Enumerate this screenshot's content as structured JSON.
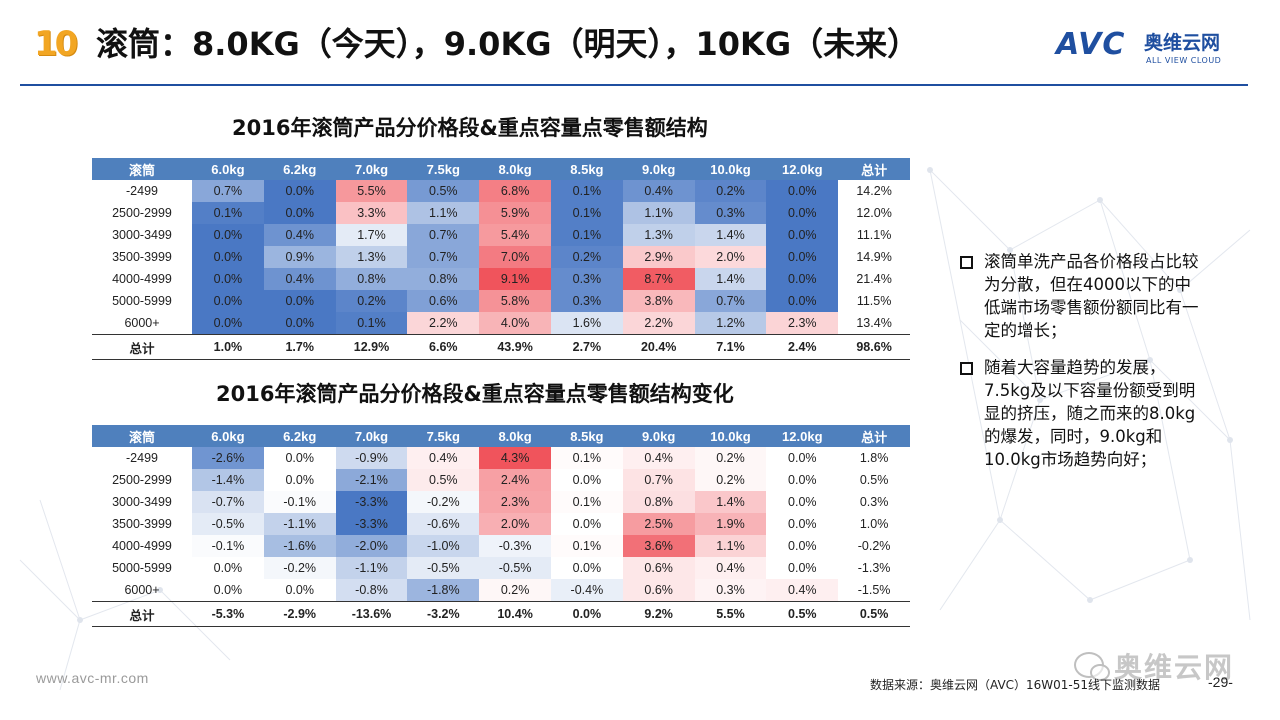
{
  "header": {
    "badge": "10",
    "title": "滚筒：8.0KG（今天），9.0KG（明天），10KG（未来）",
    "logo_text": "AVC",
    "logo_cn": "奥维云网",
    "logo_en": "ALL VIEW CLOUD"
  },
  "colors": {
    "header_bg": "#4f80bd",
    "positive_high": "#f0545c",
    "negative_high": "#4a78c4",
    "title_accent": "#f2a623",
    "brand": "#1f4fa0"
  },
  "table1": {
    "title": "2016年滚筒产品分价格段&重点容量点零售额结构",
    "columns": [
      "滚筒",
      "6.0kg",
      "6.2kg",
      "7.0kg",
      "7.5kg",
      "8.0kg",
      "8.5kg",
      "9.0kg",
      "10.0kg",
      "12.0kg",
      "总计"
    ],
    "rows": [
      [
        "-2499",
        "0.7%",
        "0.0%",
        "5.5%",
        "0.5%",
        "6.8%",
        "0.1%",
        "0.4%",
        "0.2%",
        "0.0%",
        "14.2%"
      ],
      [
        "2500-2999",
        "0.1%",
        "0.0%",
        "3.3%",
        "1.1%",
        "5.9%",
        "0.1%",
        "1.1%",
        "0.3%",
        "0.0%",
        "12.0%"
      ],
      [
        "3000-3499",
        "0.0%",
        "0.4%",
        "1.7%",
        "0.7%",
        "5.4%",
        "0.1%",
        "1.3%",
        "1.4%",
        "0.0%",
        "11.1%"
      ],
      [
        "3500-3999",
        "0.0%",
        "0.9%",
        "1.3%",
        "0.7%",
        "7.0%",
        "0.2%",
        "2.9%",
        "2.0%",
        "0.0%",
        "14.9%"
      ],
      [
        "4000-4999",
        "0.0%",
        "0.4%",
        "0.8%",
        "0.8%",
        "9.1%",
        "0.3%",
        "8.7%",
        "1.4%",
        "0.0%",
        "21.4%"
      ],
      [
        "5000-5999",
        "0.0%",
        "0.0%",
        "0.2%",
        "0.6%",
        "5.8%",
        "0.3%",
        "3.8%",
        "0.7%",
        "0.0%",
        "11.5%"
      ],
      [
        "6000+",
        "0.0%",
        "0.0%",
        "0.1%",
        "2.2%",
        "4.0%",
        "1.6%",
        "2.2%",
        "1.2%",
        "2.3%",
        "13.4%"
      ]
    ],
    "total": [
      "总计",
      "1.0%",
      "1.7%",
      "12.9%",
      "6.6%",
      "43.9%",
      "2.7%",
      "20.4%",
      "7.1%",
      "2.4%",
      "98.6%"
    ]
  },
  "table2": {
    "title": "2016年滚筒产品分价格段&重点容量点零售额结构变化",
    "columns": [
      "滚筒",
      "6.0kg",
      "6.2kg",
      "7.0kg",
      "7.5kg",
      "8.0kg",
      "8.5kg",
      "9.0kg",
      "10.0kg",
      "12.0kg",
      "总计"
    ],
    "rows": [
      [
        "-2499",
        "-2.6%",
        "0.0%",
        "-0.9%",
        "0.4%",
        "4.3%",
        "0.1%",
        "0.4%",
        "0.2%",
        "0.0%",
        "1.8%"
      ],
      [
        "2500-2999",
        "-1.4%",
        "0.0%",
        "-2.1%",
        "0.5%",
        "2.4%",
        "0.0%",
        "0.7%",
        "0.2%",
        "0.0%",
        "0.5%"
      ],
      [
        "3000-3499",
        "-0.7%",
        "-0.1%",
        "-3.3%",
        "-0.2%",
        "2.3%",
        "0.1%",
        "0.8%",
        "1.4%",
        "0.0%",
        "0.3%"
      ],
      [
        "3500-3999",
        "-0.5%",
        "-1.1%",
        "-3.3%",
        "-0.6%",
        "2.0%",
        "0.0%",
        "2.5%",
        "1.9%",
        "0.0%",
        "1.0%"
      ],
      [
        "4000-4999",
        "-0.1%",
        "-1.6%",
        "-2.0%",
        "-1.0%",
        "-0.3%",
        "0.1%",
        "3.6%",
        "1.1%",
        "0.0%",
        "-0.2%"
      ],
      [
        "5000-5999",
        "0.0%",
        "-0.2%",
        "-1.1%",
        "-0.5%",
        "-0.5%",
        "0.0%",
        "0.6%",
        "0.4%",
        "0.0%",
        "-1.3%"
      ],
      [
        "6000+",
        "0.0%",
        "0.0%",
        "-0.8%",
        "-1.8%",
        "0.2%",
        "-0.4%",
        "0.6%",
        "0.3%",
        "0.4%",
        "-1.5%"
      ]
    ],
    "total": [
      "总计",
      "-5.3%",
      "-2.9%",
      "-13.6%",
      "-3.2%",
      "10.4%",
      "0.0%",
      "9.2%",
      "5.5%",
      "0.5%",
      "0.5%"
    ]
  },
  "bullets": [
    "滚筒单洗产品各价格段占比较为分散，但在4000以下的中低端市场零售额份额同比有一定的增长；",
    "随着大容量趋势的发展，7.5kg及以下容量份额受到明显的挤压，随之而来的8.0kg的爆发，同时，9.0kg和10.0kg市场趋势向好；"
  ],
  "footer": {
    "url": "www.avc-mr.com",
    "source": "数据来源：奥维云网（AVC）16W01-51线下监测数据",
    "page": "-29-",
    "watermark": "奥维云网"
  }
}
